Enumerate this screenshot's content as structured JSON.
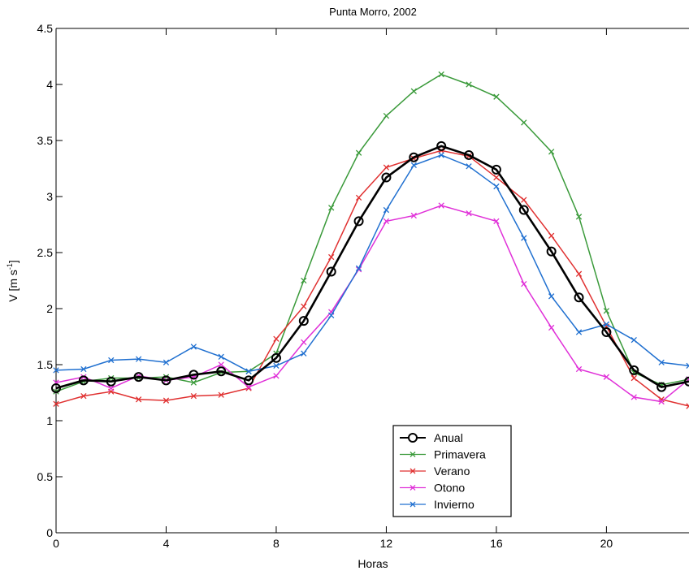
{
  "chart_data": {
    "type": "line",
    "title": "Punta Morro, 2002",
    "xlabel": "Horas",
    "ylabel_main": "V [m s",
    "ylabel_sup": "-1",
    "ylabel_close": "]",
    "xlim": [
      0,
      23
    ],
    "ylim": [
      0,
      4.5
    ],
    "xticks": [
      0,
      4,
      8,
      12,
      16,
      20
    ],
    "yticks": [
      0,
      0.5,
      1,
      1.5,
      2,
      2.5,
      3,
      3.5,
      4,
      4.5
    ],
    "ytick_labels": [
      "0",
      "0.5",
      "1",
      "1.5",
      "2",
      "2.5",
      "3",
      "3.5",
      "4",
      "4.5"
    ],
    "grid": false,
    "legend_position": "bottom-center",
    "x": [
      0,
      1,
      2,
      3,
      4,
      5,
      6,
      7,
      8,
      9,
      10,
      11,
      12,
      13,
      14,
      15,
      16,
      17,
      18,
      19,
      20,
      21,
      22,
      23
    ],
    "series": [
      {
        "name": "Anual",
        "color": "#000000",
        "marker": "circle",
        "values": [
          1.29,
          1.36,
          1.35,
          1.39,
          1.36,
          1.41,
          1.44,
          1.36,
          1.56,
          1.89,
          2.33,
          2.78,
          3.17,
          3.35,
          3.45,
          3.37,
          3.24,
          2.88,
          2.51,
          2.1,
          1.79,
          1.45,
          1.3,
          1.35
        ]
      },
      {
        "name": "Primavera",
        "color": "#3a9a3a",
        "marker": "x",
        "values": [
          1.26,
          1.35,
          1.38,
          1.38,
          1.39,
          1.34,
          1.43,
          1.44,
          1.6,
          2.25,
          2.9,
          3.39,
          3.72,
          3.94,
          4.09,
          4.0,
          3.89,
          3.66,
          3.4,
          2.82,
          1.98,
          1.43,
          1.32,
          1.37
        ]
      },
      {
        "name": "Verano",
        "color": "#e03030",
        "marker": "x",
        "values": [
          1.15,
          1.22,
          1.26,
          1.19,
          1.18,
          1.22,
          1.23,
          1.29,
          1.73,
          2.02,
          2.46,
          2.99,
          3.26,
          3.34,
          3.41,
          3.36,
          3.17,
          2.97,
          2.65,
          2.31,
          1.84,
          1.38,
          1.19,
          1.13
        ]
      },
      {
        "name": "Otono",
        "color": "#e030d8",
        "marker": "x",
        "values": [
          1.34,
          1.39,
          1.29,
          1.4,
          1.36,
          1.39,
          1.5,
          1.3,
          1.4,
          1.7,
          1.97,
          2.35,
          2.78,
          2.83,
          2.92,
          2.85,
          2.78,
          2.22,
          1.83,
          1.46,
          1.39,
          1.21,
          1.17,
          1.37
        ]
      },
      {
        "name": "Invierno",
        "color": "#2070d0",
        "marker": "x",
        "values": [
          1.45,
          1.46,
          1.54,
          1.55,
          1.52,
          1.66,
          1.57,
          1.44,
          1.49,
          1.6,
          1.94,
          2.36,
          2.88,
          3.28,
          3.37,
          3.27,
          3.09,
          2.63,
          2.11,
          1.79,
          1.86,
          1.72,
          1.52,
          1.49
        ]
      }
    ]
  }
}
